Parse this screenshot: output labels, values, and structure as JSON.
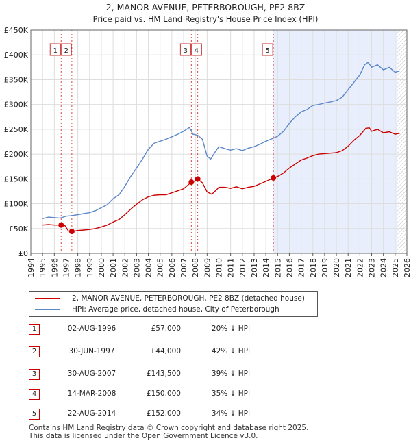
{
  "chart_data": {
    "type": "line",
    "title": "2, MANOR AVENUE, PETERBOROUGH, PE2 8BZ",
    "subtitle": "Price paid vs. HM Land Registry's House Price Index (HPI)",
    "xlim": [
      1994,
      2026
    ],
    "ylim": [
      0,
      450000
    ],
    "yticks": [
      {
        "value": 0,
        "label": "£0"
      },
      {
        "value": 50000,
        "label": "£50K"
      },
      {
        "value": 100000,
        "label": "£100K"
      },
      {
        "value": 150000,
        "label": "£150K"
      },
      {
        "value": 200000,
        "label": "£200K"
      },
      {
        "value": 250000,
        "label": "£250K"
      },
      {
        "value": 300000,
        "label": "£300K"
      },
      {
        "value": 350000,
        "label": "£350K"
      },
      {
        "value": 400000,
        "label": "£400K"
      },
      {
        "value": 450000,
        "label": "£450K"
      }
    ],
    "xticks": [
      "1994",
      "1995",
      "1996",
      "1997",
      "1998",
      "1999",
      "2000",
      "2001",
      "2002",
      "2003",
      "2004",
      "2005",
      "2006",
      "2007",
      "2008",
      "2009",
      "2010",
      "2011",
      "2012",
      "2013",
      "2014",
      "2015",
      "2016",
      "2017",
      "2018",
      "2019",
      "2020",
      "2021",
      "2022",
      "2023",
      "2024",
      "2025",
      "2026"
    ],
    "shade_start": 2014.64,
    "hatch_start": 2025.2,
    "series": [
      {
        "name": "HPI: Average price, detached house, City of Peterborough",
        "color": "#5b87c9",
        "points": [
          [
            1995.0,
            70000
          ],
          [
            1995.5,
            73000
          ],
          [
            1996.0,
            72000
          ],
          [
            1996.5,
            71000
          ],
          [
            1997.0,
            75000
          ],
          [
            1997.5,
            76000
          ],
          [
            1998.0,
            78000
          ],
          [
            1998.5,
            80000
          ],
          [
            1999.0,
            82000
          ],
          [
            1999.5,
            86000
          ],
          [
            2000.0,
            92000
          ],
          [
            2000.5,
            98000
          ],
          [
            2001.0,
            110000
          ],
          [
            2001.5,
            118000
          ],
          [
            2002.0,
            135000
          ],
          [
            2002.5,
            155000
          ],
          [
            2003.0,
            172000
          ],
          [
            2003.5,
            190000
          ],
          [
            2004.0,
            210000
          ],
          [
            2004.5,
            222000
          ],
          [
            2005.0,
            226000
          ],
          [
            2005.5,
            230000
          ],
          [
            2006.0,
            235000
          ],
          [
            2006.5,
            240000
          ],
          [
            2007.0,
            246000
          ],
          [
            2007.5,
            254000
          ],
          [
            2007.8,
            240000
          ],
          [
            2008.2,
            238000
          ],
          [
            2008.6,
            230000
          ],
          [
            2009.0,
            196000
          ],
          [
            2009.3,
            190000
          ],
          [
            2009.7,
            205000
          ],
          [
            2010.0,
            215000
          ],
          [
            2010.5,
            211000
          ],
          [
            2011.0,
            208000
          ],
          [
            2011.5,
            211000
          ],
          [
            2012.0,
            207000
          ],
          [
            2012.5,
            212000
          ],
          [
            2013.0,
            215000
          ],
          [
            2013.5,
            220000
          ],
          [
            2014.0,
            226000
          ],
          [
            2014.64,
            232000
          ],
          [
            2015.0,
            236000
          ],
          [
            2015.5,
            246000
          ],
          [
            2016.0,
            262000
          ],
          [
            2016.5,
            275000
          ],
          [
            2017.0,
            285000
          ],
          [
            2017.5,
            290000
          ],
          [
            2018.0,
            298000
          ],
          [
            2018.5,
            300000
          ],
          [
            2019.0,
            303000
          ],
          [
            2019.5,
            305000
          ],
          [
            2020.0,
            308000
          ],
          [
            2020.5,
            315000
          ],
          [
            2021.0,
            330000
          ],
          [
            2021.5,
            345000
          ],
          [
            2022.0,
            360000
          ],
          [
            2022.4,
            380000
          ],
          [
            2022.7,
            385000
          ],
          [
            2023.0,
            375000
          ],
          [
            2023.5,
            380000
          ],
          [
            2024.0,
            370000
          ],
          [
            2024.5,
            375000
          ],
          [
            2025.0,
            365000
          ],
          [
            2025.4,
            368000
          ]
        ]
      },
      {
        "name": "2, MANOR AVENUE, PETERBOROUGH, PE2 8BZ (detached house)",
        "color": "#cc0000",
        "points": [
          [
            1995.0,
            57000
          ],
          [
            1995.5,
            58000
          ],
          [
            1996.0,
            57000
          ],
          [
            1996.58,
            57000
          ],
          [
            1996.9,
            56000
          ],
          [
            1997.2,
            45000
          ],
          [
            1997.49,
            44000
          ],
          [
            1998.0,
            46000
          ],
          [
            1998.5,
            47000
          ],
          [
            1999.0,
            48000
          ],
          [
            1999.5,
            50000
          ],
          [
            2000.0,
            53000
          ],
          [
            2000.5,
            57000
          ],
          [
            2001.0,
            63000
          ],
          [
            2001.5,
            68000
          ],
          [
            2002.0,
            78000
          ],
          [
            2002.5,
            89000
          ],
          [
            2003.0,
            99000
          ],
          [
            2003.5,
            108000
          ],
          [
            2004.0,
            114000
          ],
          [
            2004.5,
            117000
          ],
          [
            2005.0,
            118000
          ],
          [
            2005.5,
            118000
          ],
          [
            2006.0,
            122000
          ],
          [
            2006.5,
            126000
          ],
          [
            2007.0,
            130000
          ],
          [
            2007.66,
            143500
          ],
          [
            2008.0,
            146000
          ],
          [
            2008.2,
            150000
          ],
          [
            2008.6,
            142000
          ],
          [
            2009.0,
            124000
          ],
          [
            2009.4,
            119000
          ],
          [
            2009.8,
            128000
          ],
          [
            2010.0,
            133000
          ],
          [
            2010.5,
            133000
          ],
          [
            2011.0,
            131000
          ],
          [
            2011.5,
            134000
          ],
          [
            2012.0,
            130000
          ],
          [
            2012.5,
            133000
          ],
          [
            2013.0,
            135000
          ],
          [
            2013.5,
            140000
          ],
          [
            2014.0,
            145000
          ],
          [
            2014.64,
            152000
          ],
          [
            2015.0,
            155000
          ],
          [
            2015.5,
            162000
          ],
          [
            2016.0,
            172000
          ],
          [
            2016.5,
            180000
          ],
          [
            2017.0,
            188000
          ],
          [
            2017.5,
            192000
          ],
          [
            2018.0,
            197000
          ],
          [
            2018.5,
            200000
          ],
          [
            2019.0,
            201000
          ],
          [
            2019.5,
            202000
          ],
          [
            2020.0,
            203000
          ],
          [
            2020.5,
            207000
          ],
          [
            2021.0,
            216000
          ],
          [
            2021.5,
            228000
          ],
          [
            2022.0,
            238000
          ],
          [
            2022.5,
            252000
          ],
          [
            2022.8,
            253000
          ],
          [
            2023.0,
            246000
          ],
          [
            2023.5,
            250000
          ],
          [
            2024.0,
            243000
          ],
          [
            2024.5,
            245000
          ],
          [
            2025.0,
            240000
          ],
          [
            2025.4,
            242000
          ]
        ]
      }
    ],
    "sales": [
      {
        "num": "1",
        "x": 1996.58,
        "price": 57000,
        "date": "02-AUG-1996",
        "price_label": "£57,000",
        "hpi": "20% ↓ HPI"
      },
      {
        "num": "2",
        "x": 1997.49,
        "price": 44000,
        "date": "30-JUN-1997",
        "price_label": "£44,000",
        "hpi": "42% ↓ HPI"
      },
      {
        "num": "3",
        "x": 2007.66,
        "price": 143500,
        "date": "30-AUG-2007",
        "price_label": "£143,500",
        "hpi": "39% ↓ HPI"
      },
      {
        "num": "4",
        "x": 2008.2,
        "price": 150000,
        "date": "14-MAR-2008",
        "price_label": "£150,000",
        "hpi": "35% ↓ HPI"
      },
      {
        "num": "5",
        "x": 2014.64,
        "price": 152000,
        "date": "22-AUG-2014",
        "price_label": "£152,000",
        "hpi": "34% ↓ HPI"
      }
    ]
  },
  "legend": {
    "property": "2, MANOR AVENUE, PETERBOROUGH, PE2 8BZ (detached house)",
    "hpi": "HPI: Average price, detached house, City of Peterborough"
  },
  "colors": {
    "property": "#cc0000",
    "hpi": "#5b87c9",
    "shade": "#e8eefb",
    "grid": "#dddddd"
  },
  "footer": {
    "line1": "Contains HM Land Registry data © Crown copyright and database right 2025.",
    "line2": "This data is licensed under the Open Government Licence v3.0."
  }
}
